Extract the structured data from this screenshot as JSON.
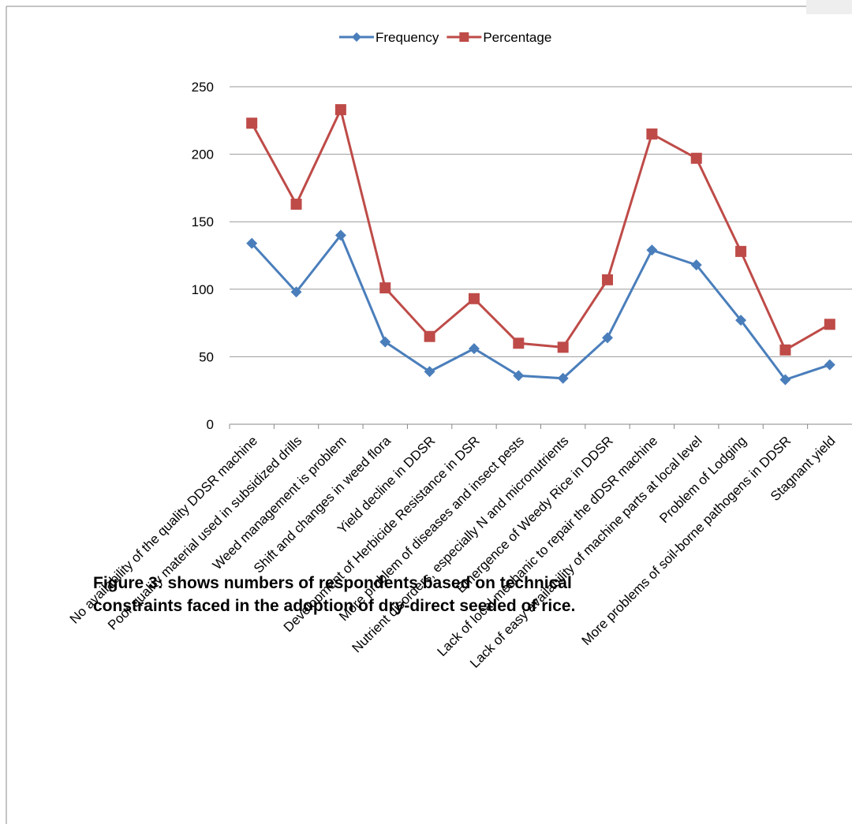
{
  "chart_data": {
    "type": "line",
    "categories": [
      "No availability of the quality DDSR machine",
      "Poor quality material used in subsidized drills",
      "Weed management is problem",
      "Shift and changes in weed flora",
      "Yield decline in DDSR",
      "Development of Herbicide Resistance in DSR",
      "More problem of diseases and insect pests",
      "Nutrient disorders, especially N and micronutrients",
      "Emergence of Weedy Rice in DDSR",
      "Lack of local mechanic to repair the dDSR machine",
      "Lack of easy availability of machine parts at local level",
      "Problem of Lodging",
      "More problems of  soil-borne pathogens in DDSR",
      "Stagnant yield"
    ],
    "series": [
      {
        "name": "Frequency",
        "color": "#4a7ebb",
        "values": [
          134,
          98,
          140,
          61,
          39,
          56,
          36,
          34,
          64,
          129,
          118,
          77,
          33,
          44
        ]
      },
      {
        "name": "Percentage",
        "color": "#be4b48",
        "values": [
          223,
          163,
          233,
          101,
          65,
          93,
          60,
          57,
          107,
          215,
          197,
          128,
          55,
          74
        ]
      }
    ],
    "ylim": [
      0,
      250
    ],
    "yticks": [
      0,
      50,
      100,
      150,
      200,
      250
    ],
    "grid": true,
    "legend": "top",
    "caption": [
      "Figure 3: shows numbers of respondents based on technical",
      "constraints faced in the adoption of dry-direct seeded of rice."
    ]
  }
}
